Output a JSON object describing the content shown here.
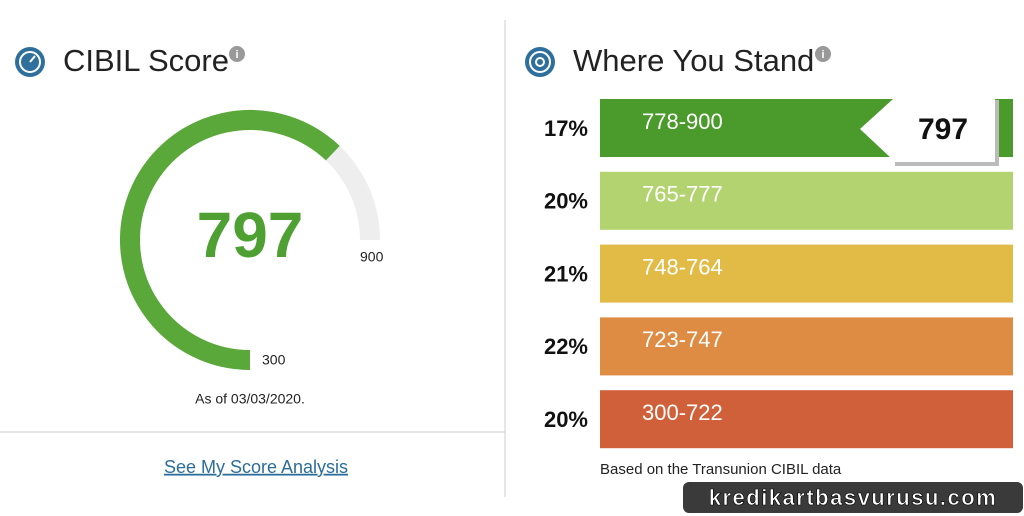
{
  "score_panel": {
    "title": "CIBIL Score",
    "score": 797,
    "min": 300,
    "max": 900,
    "as_of": "As of 03/03/2020.",
    "link": "See My Score Analysis"
  },
  "stand_panel": {
    "title": "Where You Stand",
    "rows": [
      {
        "percent": "17%",
        "range": "778-900",
        "color": "#4a9a2c"
      },
      {
        "percent": "20%",
        "range": "765-777",
        "color": "#b2d36f"
      },
      {
        "percent": "21%",
        "range": "748-764",
        "color": "#e2bb47"
      },
      {
        "percent": "22%",
        "range": "723-747",
        "color": "#de8b44"
      },
      {
        "percent": "20%",
        "range": "300-722",
        "color": "#d0603a"
      }
    ],
    "note": "Based on the Transunion CIBIL data"
  },
  "watermark": "kredikartbasvurusu.com"
}
